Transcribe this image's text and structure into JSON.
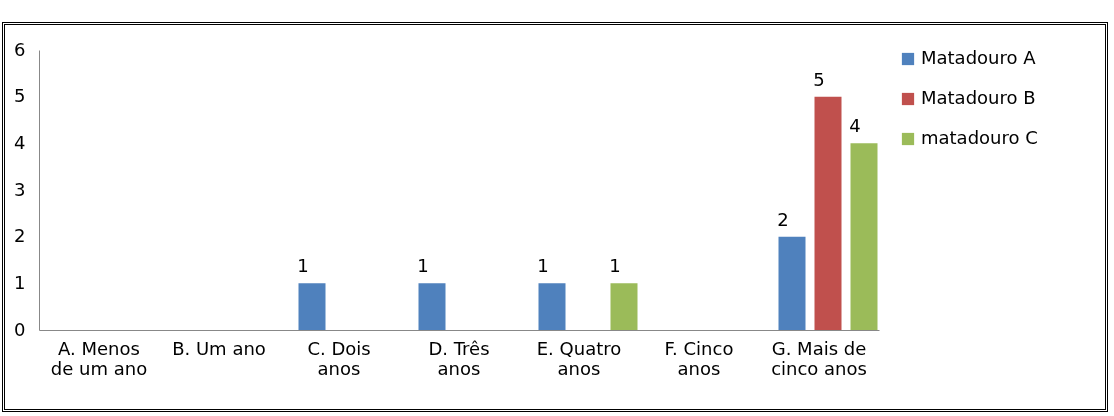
{
  "chart_data": {
    "type": "bar",
    "categories": [
      "A. Menos de um ano",
      "B. Um ano",
      "C. Dois anos",
      "D. Três anos",
      "E. Quatro anos",
      "F. Cinco anos",
      "G. Mais de cinco anos"
    ],
    "series": [
      {
        "name": "Matadouro A",
        "color": "#4f81bd",
        "values": [
          0,
          0,
          1,
          1,
          1,
          0,
          2
        ],
        "value_labels": [
          null,
          null,
          "1",
          "1",
          "1",
          null,
          "2"
        ]
      },
      {
        "name": "Matadouro B",
        "color": "#c0504d",
        "values": [
          0,
          0,
          0,
          0,
          0,
          0,
          5
        ],
        "value_labels": [
          null,
          null,
          null,
          null,
          null,
          null,
          "5"
        ]
      },
      {
        "name": "matadouro C",
        "color": "#9bbb59",
        "values": [
          0,
          0,
          0,
          0,
          1,
          0,
          4
        ],
        "value_labels": [
          null,
          null,
          null,
          null,
          "1",
          null,
          "4"
        ]
      }
    ],
    "ylim": [
      0,
      6
    ],
    "yticks": [
      0,
      1,
      2,
      3,
      4,
      5,
      6
    ],
    "grid": false,
    "legend": "right"
  }
}
